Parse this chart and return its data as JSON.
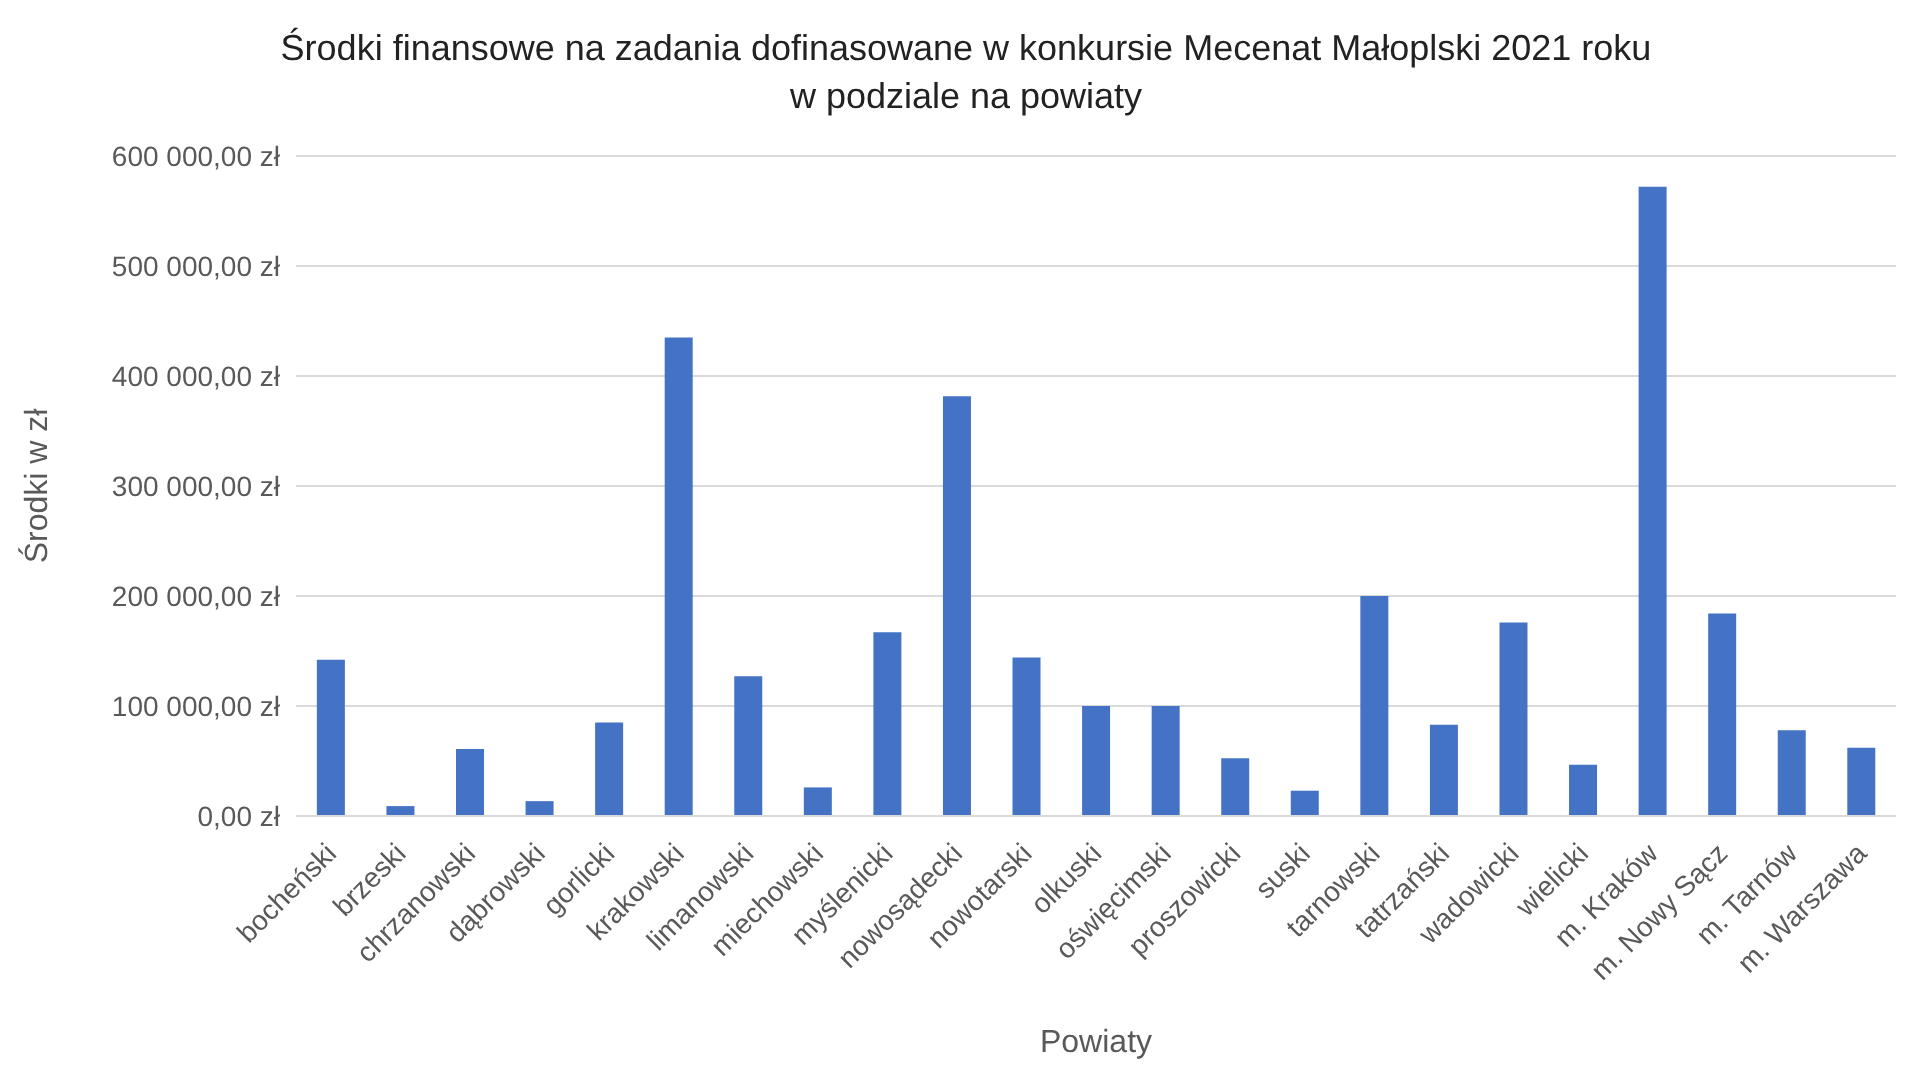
{
  "chart_data": {
    "type": "bar",
    "title": "Środki finansowe na zadania dofinasowane w  konkursie Mecenat Małoplski 2021 roku\nw podziale na powiaty",
    "xlabel": "Powiaty",
    "ylabel": "Środki w zł",
    "categories": [
      "bocheński",
      "brzeski",
      "chrzanowski",
      "dąbrowski",
      "gorlicki",
      "krakowski",
      "limanowski",
      "miechowski",
      "myślenicki",
      "nowosądecki",
      "nowotarski",
      "olkuski",
      "oświęcimski",
      "proszowicki",
      "suski",
      "tarnowski",
      "tatrzański",
      "wadowicki",
      "wielicki",
      "m. Kraków",
      "m. Nowy Sącz",
      "m. Tarnów",
      "m. Warszawa"
    ],
    "values": [
      142000,
      9000,
      61000,
      13500,
      85000,
      435000,
      127000,
      26000,
      167000,
      381500,
      144000,
      100000,
      100000,
      52500,
      23000,
      200000,
      83000,
      176000,
      46500,
      572000,
      184000,
      78000,
      62000
    ],
    "color": "#4472c4",
    "ylim": [
      0,
      600000
    ],
    "yticks": [
      {
        "value": 0,
        "label": "0,00 zł"
      },
      {
        "value": 100000,
        "label": "100 000,00 zł"
      },
      {
        "value": 200000,
        "label": "200 000,00 zł"
      },
      {
        "value": 300000,
        "label": "300 000,00 zł"
      },
      {
        "value": 400000,
        "label": "400 000,00 zł"
      },
      {
        "value": 500000,
        "label": "500 000,00 zł"
      },
      {
        "value": 600000,
        "label": "600 000,00 zł"
      }
    ],
    "grid": "y",
    "legend": false
  }
}
